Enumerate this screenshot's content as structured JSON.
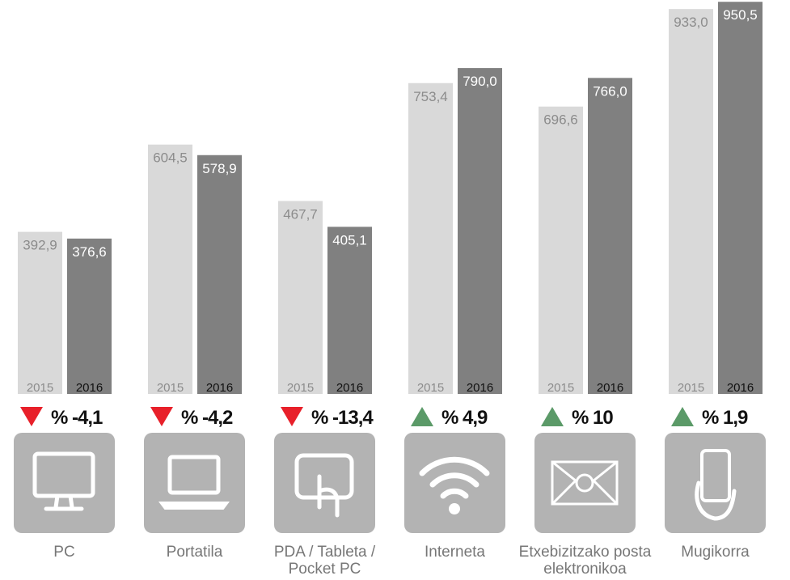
{
  "chart_data": {
    "type": "bar",
    "categories": [
      "PC",
      "Portatila",
      "PDA / Tableta / Pocket PC",
      "Interneta",
      "Etxebizitzako posta elektronikoa",
      "Mugikorra"
    ],
    "series": [
      {
        "name": "2015",
        "color": "#d9d9d9",
        "values": [
          392.9,
          604.5,
          467.7,
          753.4,
          696.6,
          933.0
        ],
        "value_labels": [
          "392,9",
          "604,5",
          "467,7",
          "753,4",
          "696,6",
          "933,0"
        ]
      },
      {
        "name": "2016",
        "color": "#808080",
        "values": [
          376.6,
          578.9,
          405.1,
          790.0,
          766.0,
          950.5
        ],
        "value_labels": [
          "376,6",
          "578,9",
          "405,1",
          "790,0",
          "766,0",
          "950,5"
        ]
      }
    ],
    "change": {
      "values": [
        -4.1,
        -4.2,
        -13.4,
        4.9,
        10,
        1.9
      ],
      "value_labels": [
        "% -4,1",
        "% -4,2",
        "% -13,4",
        "% 4,9",
        "% 10",
        "% 1,9"
      ],
      "up_color": "#5b9a68",
      "down_color": "#e8202a"
    }
  }
}
